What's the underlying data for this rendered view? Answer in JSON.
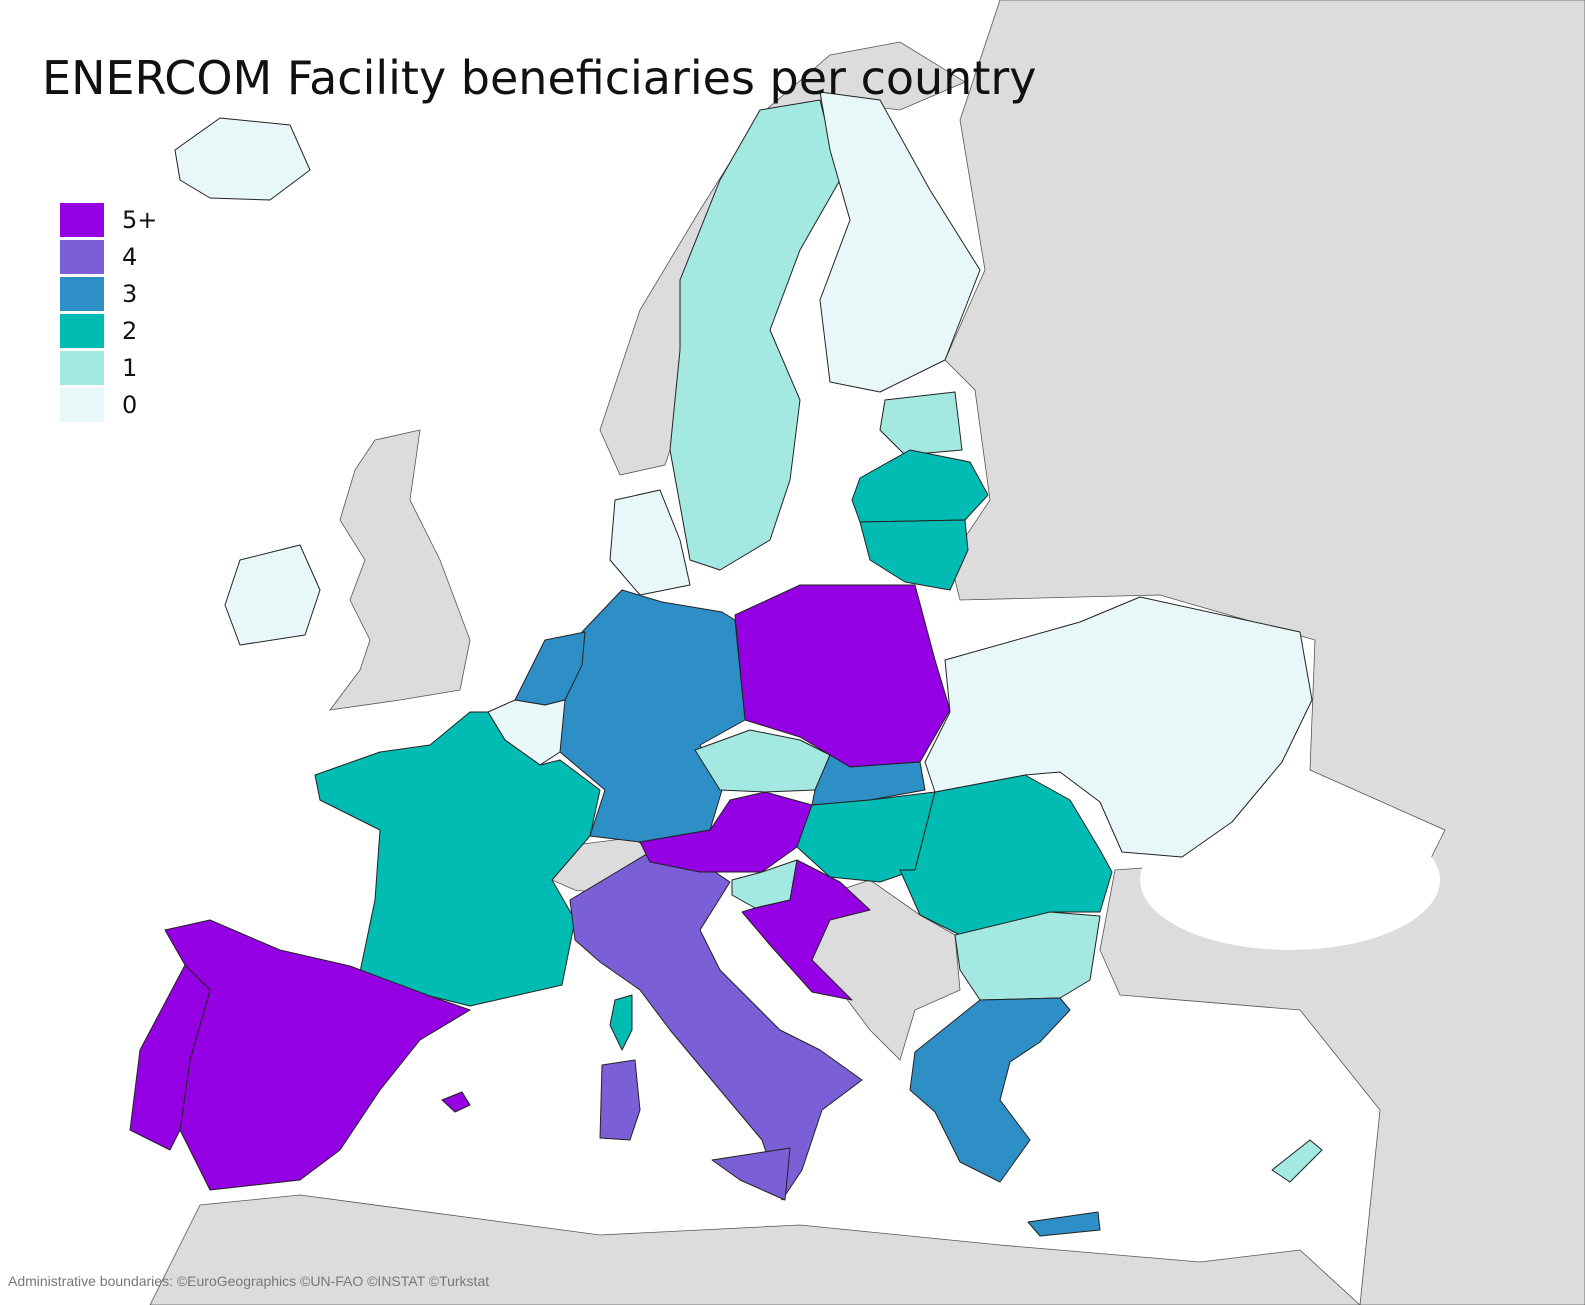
{
  "title": "ENERCOM Facility beneficiaries per country",
  "legend": {
    "items": [
      {
        "label": "5+",
        "color": "#9400e3"
      },
      {
        "label": "4",
        "color": "#7b5fd6"
      },
      {
        "label": "3",
        "color": "#2e8fc7"
      },
      {
        "label": "2",
        "color": "#00bcb2"
      },
      {
        "label": "1",
        "color": "#a4e8e2"
      },
      {
        "label": "0",
        "color": "#e8f8f8"
      }
    ]
  },
  "attribution": "Administrative boundaries: ©EuroGeographics ©UN-FAO ©INSTAT ©Turkstat"
}
